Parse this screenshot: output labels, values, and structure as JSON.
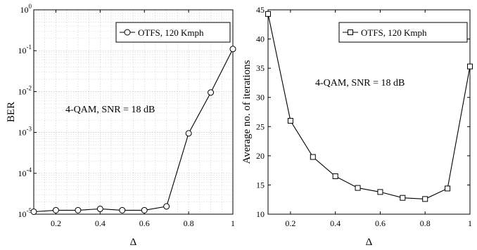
{
  "chart_data": [
    {
      "type": "line",
      "ylabel": "BER",
      "xlabel": "Δ",
      "xlim": [
        0.1,
        1.0
      ],
      "ylim": [
        1e-05,
        1
      ],
      "yscale": "log",
      "grid": true,
      "legend": {
        "position": "top-right",
        "entries": [
          "OTFS, 120 Kmph"
        ]
      },
      "annotation": "4-QAM, SNR = 18 dB",
      "x_ticks": [
        "0.2",
        "0.4",
        "0.6",
        "0.8",
        "1"
      ],
      "y_ticks": [
        {
          "base": "10",
          "exp": "0",
          "value": 1
        },
        {
          "base": "10",
          "exp": "-1",
          "value": 0.1
        },
        {
          "base": "10",
          "exp": "-2",
          "value": 0.01
        },
        {
          "base": "10",
          "exp": "-3",
          "value": 0.001
        },
        {
          "base": "10",
          "exp": "-4",
          "value": 0.0001
        },
        {
          "base": "10",
          "exp": "-5",
          "value": 1e-05
        }
      ],
      "series": [
        {
          "name": "OTFS, 120 Kmph",
          "marker": "circle",
          "color": "#000000",
          "x": [
            0.1,
            0.2,
            0.3,
            0.4,
            0.5,
            0.6,
            0.7,
            0.8,
            0.9,
            1.0
          ],
          "y": [
            1.15e-05,
            1.25e-05,
            1.25e-05,
            1.35e-05,
            1.25e-05,
            1.25e-05,
            1.55e-05,
            0.00095,
            0.0095,
            0.11
          ]
        }
      ]
    },
    {
      "type": "line",
      "ylabel": "Average no. of iterations",
      "xlabel": "Δ",
      "xlim": [
        0.1,
        1.0
      ],
      "ylim": [
        10,
        45
      ],
      "yscale": "linear",
      "grid": false,
      "legend": {
        "position": "top-right",
        "entries": [
          "OTFS, 120 Kmph"
        ]
      },
      "annotation": "4-QAM, SNR = 18 dB",
      "x_ticks": [
        "0.2",
        "0.4",
        "0.6",
        "0.8",
        "1"
      ],
      "y_ticks": [
        "10",
        "15",
        "20",
        "25",
        "30",
        "35",
        "40",
        "45"
      ],
      "series": [
        {
          "name": "OTFS, 120 Kmph",
          "marker": "square",
          "color": "#000000",
          "x": [
            0.1,
            0.2,
            0.3,
            0.4,
            0.5,
            0.6,
            0.7,
            0.8,
            0.9,
            1.0
          ],
          "y": [
            44.3,
            26.0,
            19.8,
            16.5,
            14.5,
            13.8,
            12.8,
            12.6,
            14.4,
            35.3
          ]
        }
      ]
    }
  ]
}
